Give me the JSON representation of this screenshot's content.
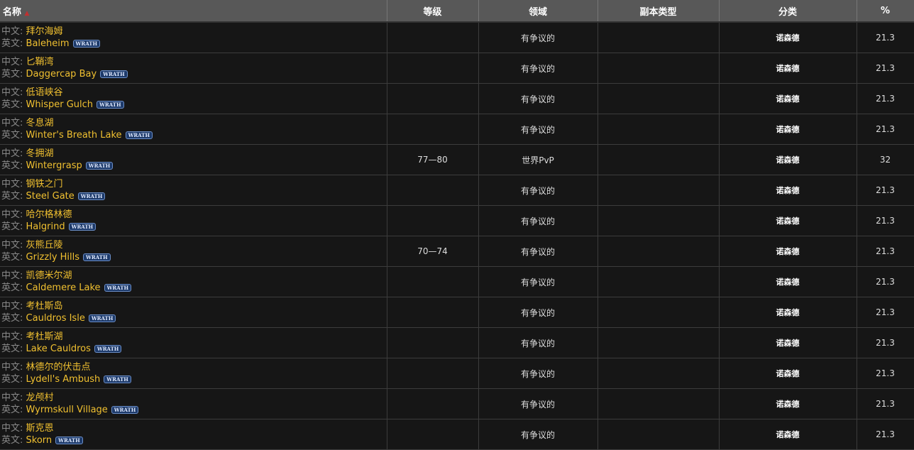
{
  "headers": {
    "name": "名称",
    "level": "等级",
    "zone": "领域",
    "instance": "副本类型",
    "category": "分类",
    "pct": "%"
  },
  "labels": {
    "cn": "中文:",
    "en": "英文:",
    "badge": "WRATH"
  },
  "colors": {
    "header_bg": "#585858",
    "name": "#f0c030",
    "bg": "#161616"
  },
  "rows": [
    {
      "cn": "拜尔海姆",
      "en": "Baleheim",
      "level": "",
      "zone": "有争议的",
      "instance": "",
      "category": "诺森德",
      "pct": "21.3"
    },
    {
      "cn": "匕鞘湾",
      "en": "Daggercap Bay",
      "level": "",
      "zone": "有争议的",
      "instance": "",
      "category": "诺森德",
      "pct": "21.3"
    },
    {
      "cn": "低语峡谷",
      "en": "Whisper Gulch",
      "level": "",
      "zone": "有争议的",
      "instance": "",
      "category": "诺森德",
      "pct": "21.3"
    },
    {
      "cn": "冬息湖",
      "en": "Winter's Breath Lake",
      "level": "",
      "zone": "有争议的",
      "instance": "",
      "category": "诺森德",
      "pct": "21.3"
    },
    {
      "cn": "冬拥湖",
      "en": "Wintergrasp",
      "level": "77—80",
      "zone": "世界PvP",
      "instance": "",
      "category": "诺森德",
      "pct": "32"
    },
    {
      "cn": "钢铁之门",
      "en": "Steel Gate",
      "level": "",
      "zone": "有争议的",
      "instance": "",
      "category": "诺森德",
      "pct": "21.3"
    },
    {
      "cn": "哈尔格林德",
      "en": "Halgrind",
      "level": "",
      "zone": "有争议的",
      "instance": "",
      "category": "诺森德",
      "pct": "21.3"
    },
    {
      "cn": "灰熊丘陵",
      "en": "Grizzly Hills",
      "level": "70—74",
      "zone": "有争议的",
      "instance": "",
      "category": "诺森德",
      "pct": "21.3"
    },
    {
      "cn": "凯德米尔湖",
      "en": "Caldemere Lake",
      "level": "",
      "zone": "有争议的",
      "instance": "",
      "category": "诺森德",
      "pct": "21.3"
    },
    {
      "cn": "考杜斯岛",
      "en": "Cauldros Isle",
      "level": "",
      "zone": "有争议的",
      "instance": "",
      "category": "诺森德",
      "pct": "21.3"
    },
    {
      "cn": "考杜斯湖",
      "en": "Lake Cauldros",
      "level": "",
      "zone": "有争议的",
      "instance": "",
      "category": "诺森德",
      "pct": "21.3"
    },
    {
      "cn": "林德尔的伏击点",
      "en": "Lydell's Ambush",
      "level": "",
      "zone": "有争议的",
      "instance": "",
      "category": "诺森德",
      "pct": "21.3"
    },
    {
      "cn": "龙颅村",
      "en": "Wyrmskull Village",
      "level": "",
      "zone": "有争议的",
      "instance": "",
      "category": "诺森德",
      "pct": "21.3"
    },
    {
      "cn": "斯克恩",
      "en": "Skorn",
      "level": "",
      "zone": "有争议的",
      "instance": "",
      "category": "诺森德",
      "pct": "21.3"
    }
  ]
}
